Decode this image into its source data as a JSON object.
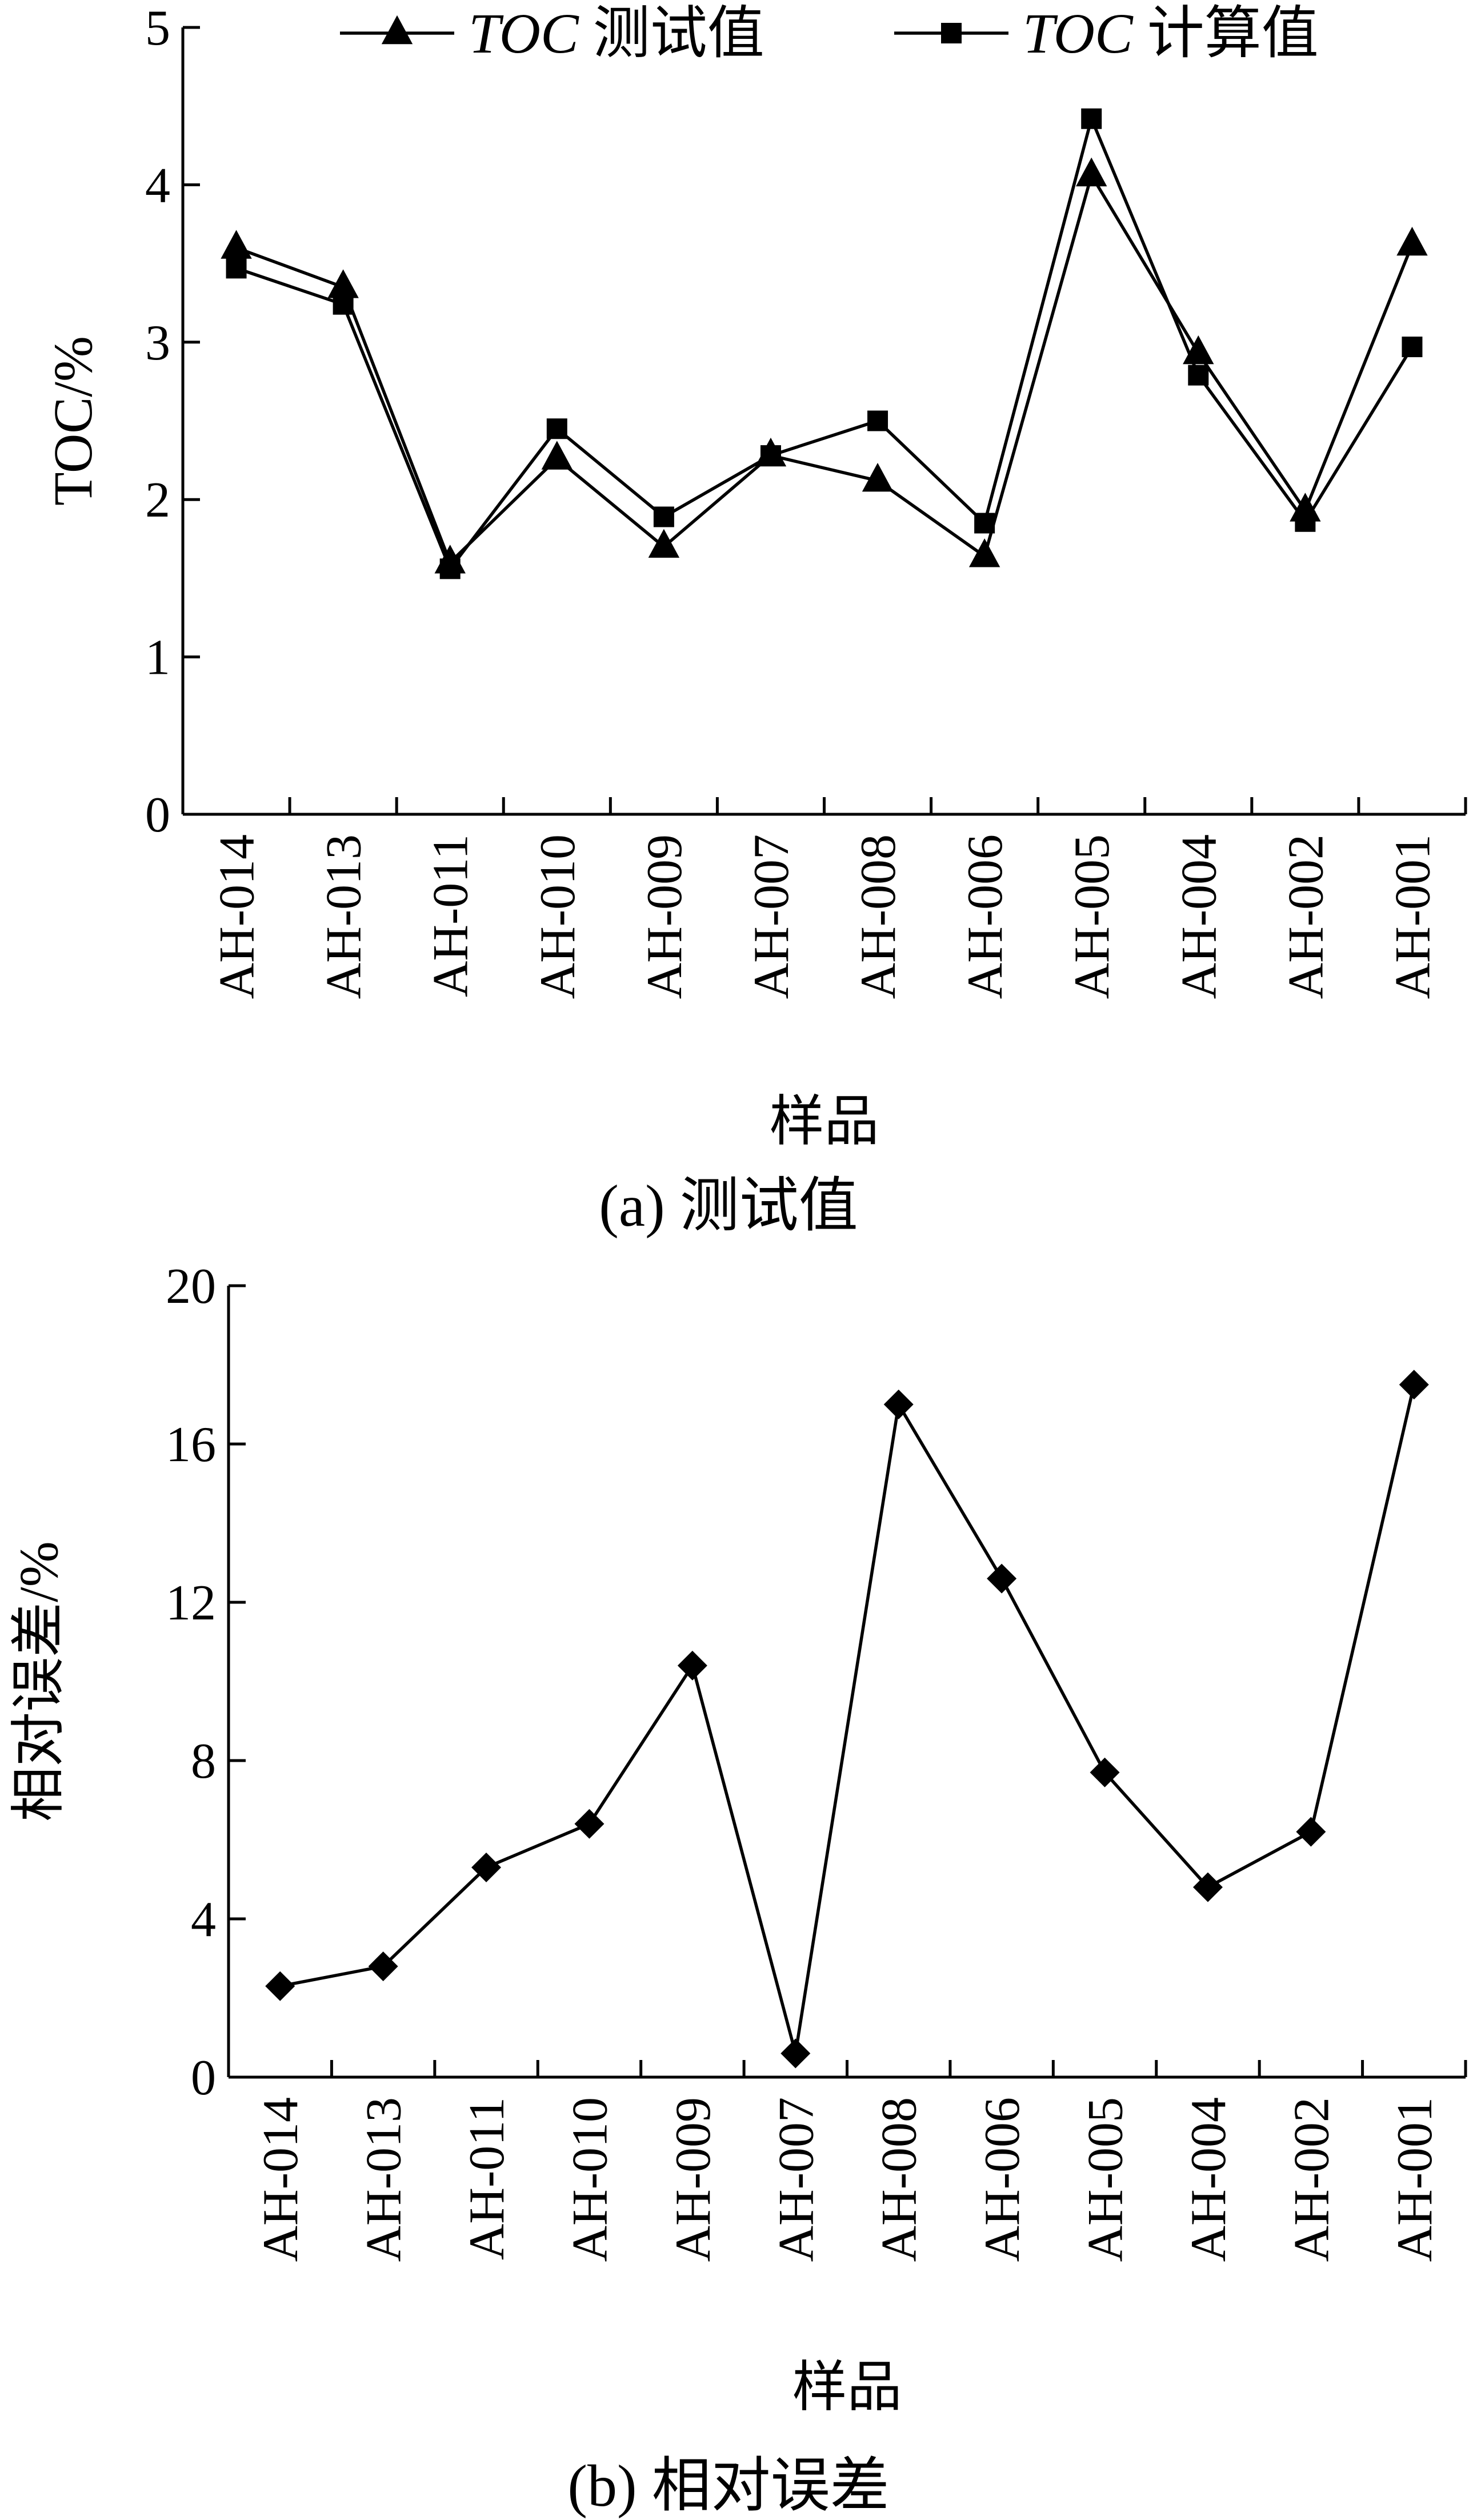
{
  "figure": {
    "captions": [
      "(a) 测试值",
      "(b) 相对误差"
    ]
  },
  "chart_data": [
    {
      "type": "line",
      "categories": [
        "AH-014",
        "AH-013",
        "AH-011",
        "AH-010",
        "AH-009",
        "AH-007",
        "AH-008",
        "AH-006",
        "AH-005",
        "AH-004",
        "AH-002",
        "AH-001"
      ],
      "series": [
        {
          "name": "TOC 测试值",
          "marker": "triangle",
          "values": [
            3.6,
            3.35,
            1.6,
            2.26,
            1.7,
            2.28,
            2.12,
            1.64,
            4.06,
            2.93,
            1.93,
            3.62
          ]
        },
        {
          "name": "TOC 计算值",
          "marker": "square",
          "values": [
            3.47,
            3.24,
            1.56,
            2.45,
            1.89,
            2.28,
            2.5,
            1.85,
            4.42,
            2.79,
            1.86,
            2.97
          ]
        }
      ],
      "title": "",
      "xlabel": "样品",
      "ylabel": "TOC/%",
      "ylim": [
        0,
        5
      ],
      "yticks": [
        "0",
        "1",
        "2",
        "3",
        "4",
        "5"
      ],
      "legend": "top",
      "grid": false,
      "line_color": "#000000"
    },
    {
      "type": "line",
      "categories": [
        "AH-014",
        "AH-013",
        "AH-011",
        "AH-010",
        "AH-009",
        "AH-007",
        "AH-008",
        "AH-006",
        "AH-005",
        "AH-004",
        "AH-002",
        "AH-001"
      ],
      "series": [
        {
          "name": "",
          "marker": "diamond",
          "values": [
            2.3,
            2.8,
            5.3,
            6.4,
            10.4,
            0.6,
            17.0,
            12.6,
            7.7,
            4.8,
            6.2,
            17.5
          ]
        }
      ],
      "title": "",
      "xlabel": "样品",
      "ylabel": "相对误差/%",
      "ylim": [
        0,
        20
      ],
      "yticks": [
        "0",
        "4",
        "8",
        "12",
        "16",
        "20"
      ],
      "grid": false,
      "line_color": "#000000"
    }
  ]
}
